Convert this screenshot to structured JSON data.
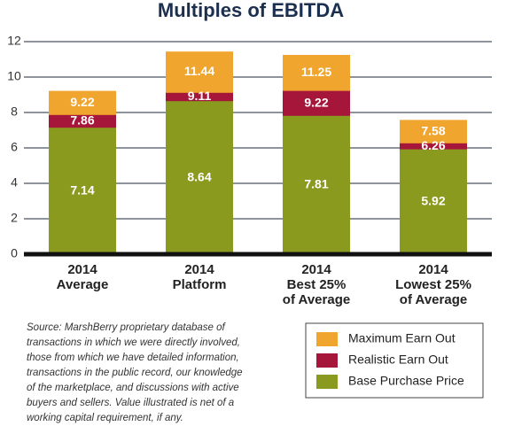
{
  "chart_data": {
    "type": "bar",
    "layout": "overlap",
    "title": "Multiples of EBITDA",
    "categories": [
      [
        "2014",
        "Average"
      ],
      [
        "2014",
        "Platform"
      ],
      [
        "2014",
        "Best 25%",
        "of Average"
      ],
      [
        "2014",
        "Lowest 25%",
        "of Average"
      ]
    ],
    "series": [
      {
        "name": "Maximum Earn Out",
        "color": "#efa52e",
        "values": [
          9.22,
          11.44,
          11.25,
          7.58
        ]
      },
      {
        "name": "Realistic Earn Out",
        "color": "#a6163b",
        "values": [
          7.86,
          9.11,
          9.22,
          6.26
        ]
      },
      {
        "name": "Base Purchase Price",
        "color": "#8a9a1f",
        "values": [
          7.14,
          8.64,
          7.81,
          5.92
        ]
      }
    ],
    "ylim": [
      0,
      12
    ],
    "yticks": [
      0,
      2,
      4,
      6,
      8,
      10,
      12
    ],
    "grid": true,
    "note": [
      "Source: MarshBerry proprietary database of",
      "transactions in which we were directly involved,",
      "those from which we have detailed information,",
      "transactions in the public record, our knowledge",
      "of the marketplace, and discussions with active",
      "buyers and sellers. Value illustrated is net of a",
      "working capital requirement, if any."
    ]
  }
}
